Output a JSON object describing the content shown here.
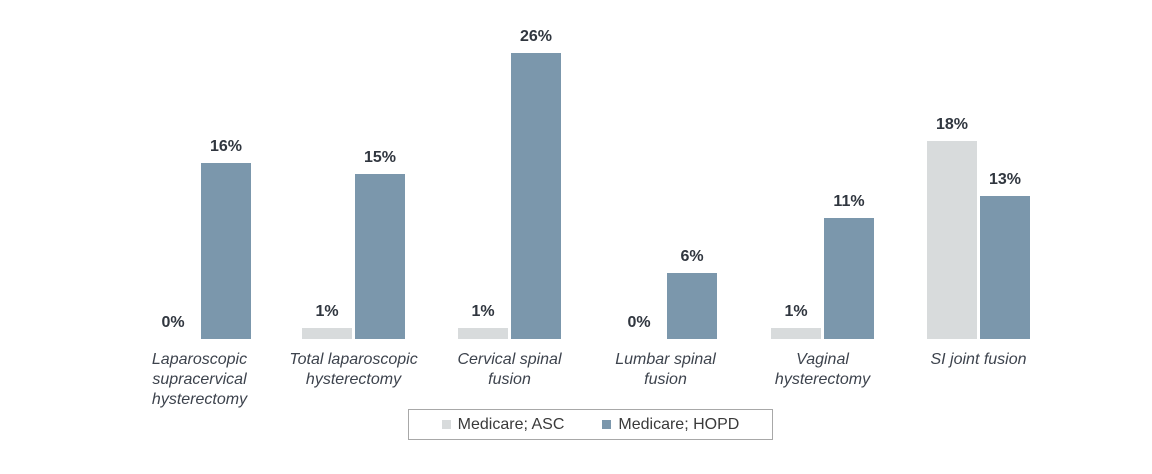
{
  "background_color": "#ffffff",
  "chart_data": {
    "type": "bar",
    "title": "",
    "xlabel": "",
    "ylabel": "",
    "unit": "%",
    "ylim": [
      0,
      28
    ],
    "grid": false,
    "axis_lines": false,
    "legend_position": "bottom-center",
    "legend_border_color": "#a8a8a8",
    "categories": [
      "Laparoscopic supracervical hysterectomy",
      "Total laparoscopic hysterectomy",
      "Cervical spinal fusion",
      "Lumbar spinal fusion",
      "Vaginal hysterectomy",
      "SI joint fusion"
    ],
    "category_label_lines": [
      [
        "Laparoscopic",
        "supracervical",
        "hysterectomy"
      ],
      [
        "Total laparoscopic",
        "hysterectomy"
      ],
      [
        "Cervical spinal",
        "fusion"
      ],
      [
        "Lumbar spinal",
        "fusion"
      ],
      [
        "Vaginal",
        "hysterectomy"
      ],
      [
        "SI joint fusion"
      ]
    ],
    "series": [
      {
        "name": "Medicare; ASC",
        "color": "#d8dbdc",
        "values": [
          0,
          1,
          1,
          0,
          1,
          18
        ],
        "value_labels": [
          "0%",
          "1%",
          "1%",
          "0%",
          "1%",
          "18%"
        ]
      },
      {
        "name": "Medicare; HOPD",
        "color": "#7b97ac",
        "values": [
          16,
          15,
          26,
          6,
          11,
          13
        ],
        "value_labels": [
          "16%",
          "15%",
          "26%",
          "6%",
          "11%",
          "13%"
        ]
      }
    ],
    "value_label_color": "#30363f",
    "category_label_color": "#3d434d"
  }
}
